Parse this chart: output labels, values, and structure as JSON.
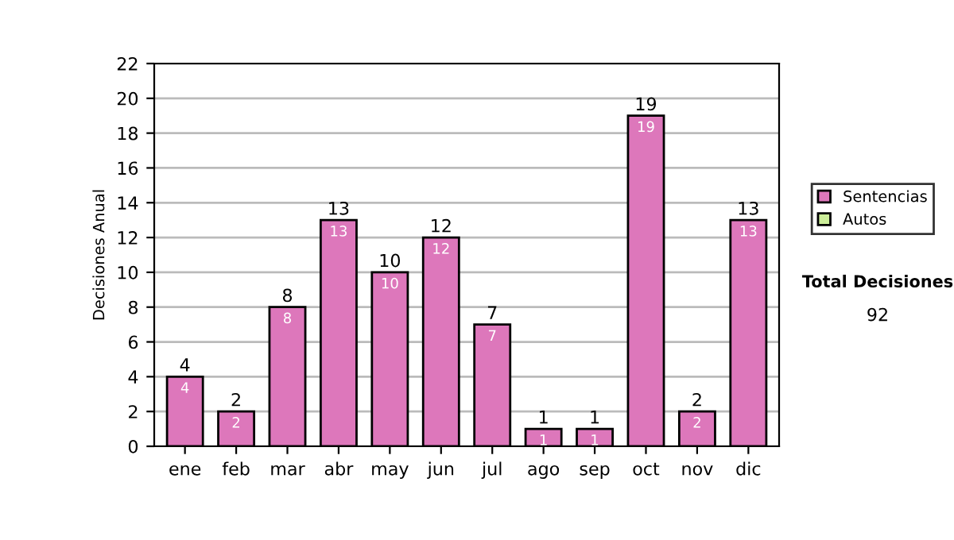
{
  "chart_data": {
    "type": "bar",
    "ylabel": "Decisiones Anual",
    "categories": [
      "ene",
      "feb",
      "mar",
      "abr",
      "may",
      "jun",
      "jul",
      "ago",
      "sep",
      "oct",
      "nov",
      "dic"
    ],
    "series": [
      {
        "name": "Sentencias",
        "color": "#dd77bb",
        "values": [
          4,
          2,
          8,
          13,
          10,
          12,
          7,
          1,
          1,
          19,
          2,
          13
        ],
        "value_labels": [
          "4",
          "2",
          "8",
          "13",
          "10",
          "12",
          "7",
          "1",
          "1",
          "19",
          "2",
          "13"
        ]
      },
      {
        "name": "Autos",
        "color": "#ccee99",
        "values": [
          null,
          null,
          null,
          null,
          null,
          null,
          null,
          null,
          null,
          null,
          null,
          null
        ]
      }
    ],
    "stacked": true,
    "totals": [
      "4",
      "2",
      "8",
      "13",
      "10",
      "12",
      "7",
      "1",
      "1",
      "19",
      "2",
      "13"
    ],
    "ylim": [
      0,
      22
    ],
    "yticks": [
      0,
      2,
      4,
      6,
      8,
      10,
      12,
      14,
      16,
      18,
      20,
      22
    ],
    "grid": "y",
    "legend": "right",
    "annotations": [
      "Total Decisiones",
      "92"
    ]
  }
}
